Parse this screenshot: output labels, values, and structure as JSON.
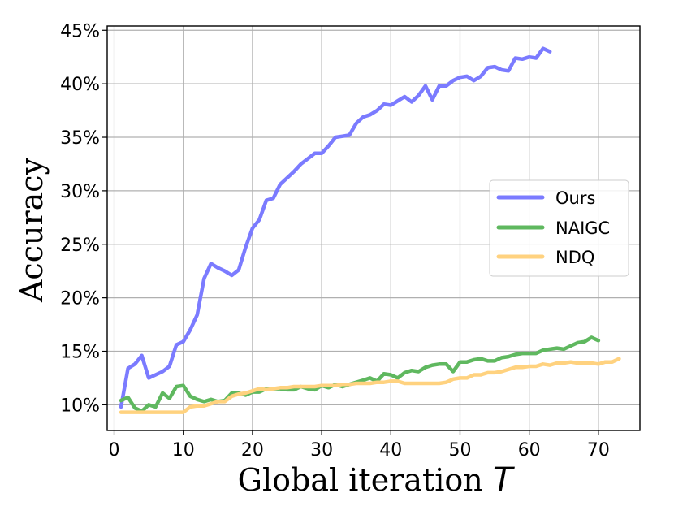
{
  "chart_data": {
    "type": "line",
    "xlabel": "Global iteration",
    "xlabel_var": "T",
    "ylabel": "Accuracy",
    "xlim": [
      -1,
      76
    ],
    "ylim": [
      7.6,
      45.4
    ],
    "xticks": [
      0,
      10,
      20,
      30,
      40,
      50,
      60,
      70
    ],
    "yticks": [
      10,
      15,
      20,
      25,
      30,
      35,
      40,
      45
    ],
    "ytick_suffix": "%",
    "grid": true,
    "legend_position": "center-right",
    "series": [
      {
        "name": "Ours",
        "color": "#7b7bff",
        "x": [
          1,
          2,
          3,
          4,
          5,
          6,
          7,
          8,
          9,
          10,
          11,
          12,
          13,
          14,
          15,
          16,
          17,
          18,
          19,
          20,
          21,
          22,
          23,
          24,
          25,
          26,
          27,
          28,
          29,
          30,
          31,
          32,
          33,
          34,
          35,
          36,
          37,
          38,
          39,
          40,
          41,
          42,
          43,
          44,
          45,
          46,
          47,
          48,
          49,
          50,
          51,
          52,
          53,
          54,
          55,
          56,
          57,
          58,
          59,
          60,
          61,
          62,
          63
        ],
        "y": [
          9.8,
          13.4,
          13.8,
          14.6,
          12.5,
          12.8,
          13.1,
          13.6,
          15.6,
          15.9,
          17.0,
          18.4,
          21.8,
          23.2,
          22.8,
          22.5,
          22.1,
          22.6,
          24.7,
          26.5,
          27.3,
          29.1,
          29.3,
          30.6,
          31.2,
          31.8,
          32.5,
          33.0,
          33.5,
          33.5,
          34.2,
          35.0,
          35.1,
          35.2,
          36.3,
          36.9,
          37.1,
          37.5,
          38.1,
          38.0,
          38.4,
          38.8,
          38.3,
          38.9,
          39.8,
          38.5,
          39.8,
          39.8,
          40.3,
          40.6,
          40.7,
          40.3,
          40.7,
          41.5,
          41.6,
          41.3,
          41.2,
          42.4,
          42.3,
          42.5,
          42.4,
          43.3,
          43.0
        ]
      },
      {
        "name": "NAIGC",
        "color": "#5fb85f",
        "x": [
          1,
          2,
          3,
          4,
          5,
          6,
          7,
          8,
          9,
          10,
          11,
          12,
          13,
          14,
          15,
          16,
          17,
          18,
          19,
          20,
          21,
          22,
          23,
          24,
          25,
          26,
          27,
          28,
          29,
          30,
          31,
          32,
          33,
          34,
          35,
          36,
          37,
          38,
          39,
          40,
          41,
          42,
          43,
          44,
          45,
          46,
          47,
          48,
          49,
          50,
          51,
          52,
          53,
          54,
          55,
          56,
          57,
          58,
          59,
          60,
          61,
          62,
          63,
          64,
          65,
          66,
          67,
          68,
          69,
          70
        ],
        "y": [
          10.4,
          10.7,
          9.7,
          9.4,
          10.0,
          9.8,
          11.1,
          10.6,
          11.7,
          11.8,
          10.8,
          10.5,
          10.3,
          10.5,
          10.3,
          10.4,
          11.1,
          11.1,
          10.9,
          11.2,
          11.2,
          11.5,
          11.5,
          11.5,
          11.4,
          11.4,
          11.7,
          11.5,
          11.4,
          11.8,
          11.6,
          11.9,
          11.7,
          11.9,
          12.1,
          12.3,
          12.5,
          12.2,
          12.9,
          12.8,
          12.5,
          13.0,
          13.2,
          13.1,
          13.5,
          13.7,
          13.8,
          13.8,
          13.1,
          14.0,
          14.0,
          14.2,
          14.3,
          14.1,
          14.1,
          14.4,
          14.5,
          14.7,
          14.8,
          14.8,
          14.8,
          15.1,
          15.2,
          15.3,
          15.2,
          15.5,
          15.8,
          15.9,
          16.3,
          16.0
        ]
      },
      {
        "name": "NDQ",
        "color": "#ffd27f",
        "x": [
          1,
          2,
          3,
          4,
          5,
          6,
          7,
          8,
          9,
          10,
          11,
          12,
          13,
          14,
          15,
          16,
          17,
          18,
          19,
          20,
          21,
          22,
          23,
          24,
          25,
          26,
          27,
          28,
          29,
          30,
          31,
          32,
          33,
          34,
          35,
          36,
          37,
          38,
          39,
          40,
          41,
          42,
          43,
          44,
          45,
          46,
          47,
          48,
          49,
          50,
          51,
          52,
          53,
          54,
          55,
          56,
          57,
          58,
          59,
          60,
          61,
          62,
          63,
          64,
          65,
          66,
          67,
          68,
          69,
          70,
          71,
          72,
          73
        ],
        "y": [
          9.3,
          9.3,
          9.3,
          9.3,
          9.3,
          9.3,
          9.3,
          9.3,
          9.3,
          9.3,
          9.8,
          9.9,
          9.9,
          10.1,
          10.3,
          10.3,
          10.8,
          11.0,
          11.1,
          11.3,
          11.5,
          11.4,
          11.5,
          11.6,
          11.6,
          11.7,
          11.7,
          11.7,
          11.7,
          11.8,
          11.8,
          11.8,
          11.9,
          11.9,
          12.0,
          12.0,
          12.0,
          12.1,
          12.1,
          12.2,
          12.2,
          12.0,
          12.0,
          12.0,
          12.0,
          12.0,
          12.0,
          12.1,
          12.4,
          12.5,
          12.5,
          12.8,
          12.8,
          13.0,
          13.0,
          13.1,
          13.3,
          13.5,
          13.5,
          13.6,
          13.6,
          13.8,
          13.7,
          13.9,
          13.9,
          14.0,
          13.9,
          13.9,
          13.9,
          13.8,
          14.0,
          14.0,
          14.3
        ]
      }
    ]
  }
}
